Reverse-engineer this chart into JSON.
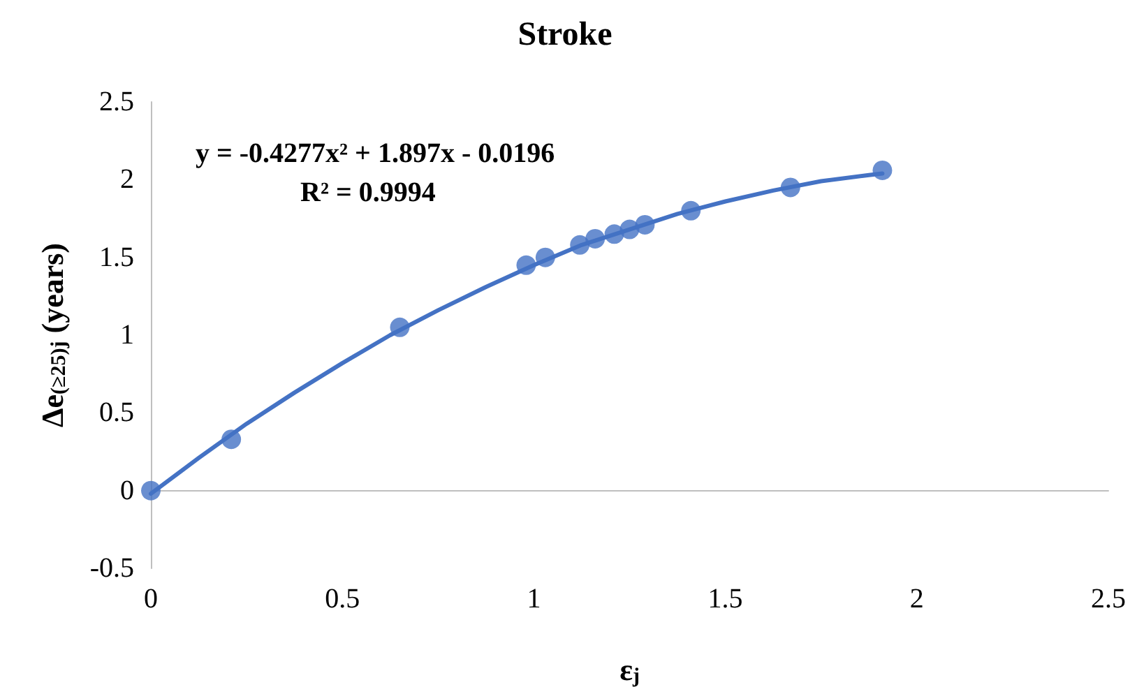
{
  "chart_data": {
    "type": "scatter",
    "title": "Stroke",
    "xlabel": "ε$_{j}$",
    "ylabel": "Δe$_{(≥25)j}$ (years)",
    "annotations": [
      "y = -0.4277x² + 1.897x - 0.0196",
      "R² = 0.9994"
    ],
    "x": [
      0,
      0.21,
      0.65,
      0.98,
      1.03,
      1.12,
      1.16,
      1.21,
      1.25,
      1.29,
      1.41,
      1.67,
      1.91
    ],
    "series": [
      {
        "color": "#4472c4",
        "marker": "circle",
        "values": [
          0,
          0.33,
          1.05,
          1.45,
          1.5,
          1.58,
          1.62,
          1.65,
          1.68,
          1.71,
          1.8,
          1.95,
          2.06
        ]
      },
      {
        "type": "line",
        "color": "#4472c4",
        "marker": "none",
        "line_style": "solid",
        "x": [
          0,
          0.125,
          0.25,
          0.375,
          0.5,
          0.625,
          0.75,
          0.875,
          1,
          1.125,
          1.25,
          1.375,
          1.5,
          1.625,
          1.75,
          1.875,
          1.91
        ],
        "values": [
          -0.02,
          0.21,
          0.43,
          0.63,
          0.82,
          1.0,
          1.16,
          1.31,
          1.45,
          1.58,
          1.68,
          1.78,
          1.86,
          1.93,
          1.99,
          2.03,
          2.04
        ]
      }
    ],
    "xlim": [
      0,
      2.5
    ],
    "xticks": [
      0,
      0.5,
      1,
      1.5,
      2,
      2.5
    ],
    "ylim": [
      -0.5,
      2.5
    ],
    "yticks": [
      -0.5,
      0,
      0.5,
      1,
      1.5,
      2,
      2.5
    ]
  }
}
